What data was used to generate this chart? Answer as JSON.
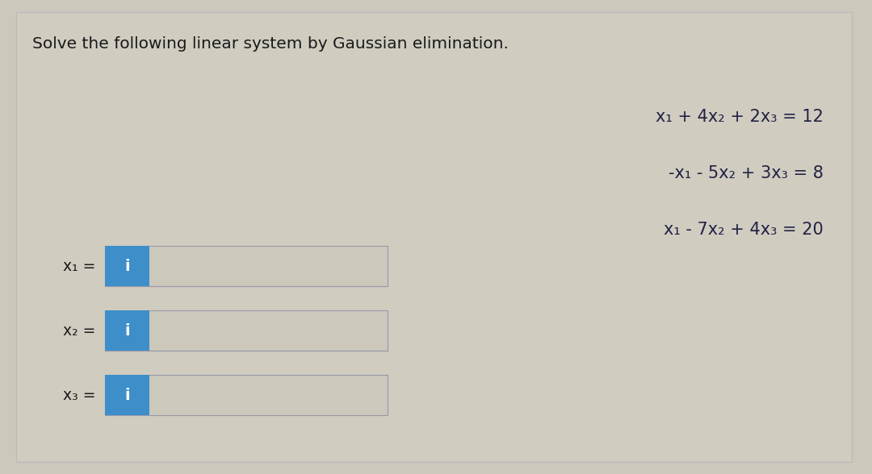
{
  "title": "Solve the following linear system by Gaussian elimination.",
  "title_fontsize": 14.5,
  "title_color": "#1a1a1a",
  "bg_color": "#ccc8bb",
  "card_bg": "#d4cfc2",
  "equations": [
    "x₁ + 4x₂ + 2x₃ = 12",
    "-x₁ - 5x₂ + 3x₃ = 8",
    "x₁ - 7x₂ + 4x₃ = 20"
  ],
  "eq_fontsize": 15,
  "eq_color": "#222244",
  "labels": [
    "x₁ =",
    "x₂ =",
    "x₃ ="
  ],
  "label_fontsize": 13.5,
  "label_color": "#1a1a1a",
  "blue_box_color": "#3d8ec9",
  "separator_color": "#9999aa",
  "input_border_color": "#9999aa",
  "input_bg": "#ccc8bb"
}
